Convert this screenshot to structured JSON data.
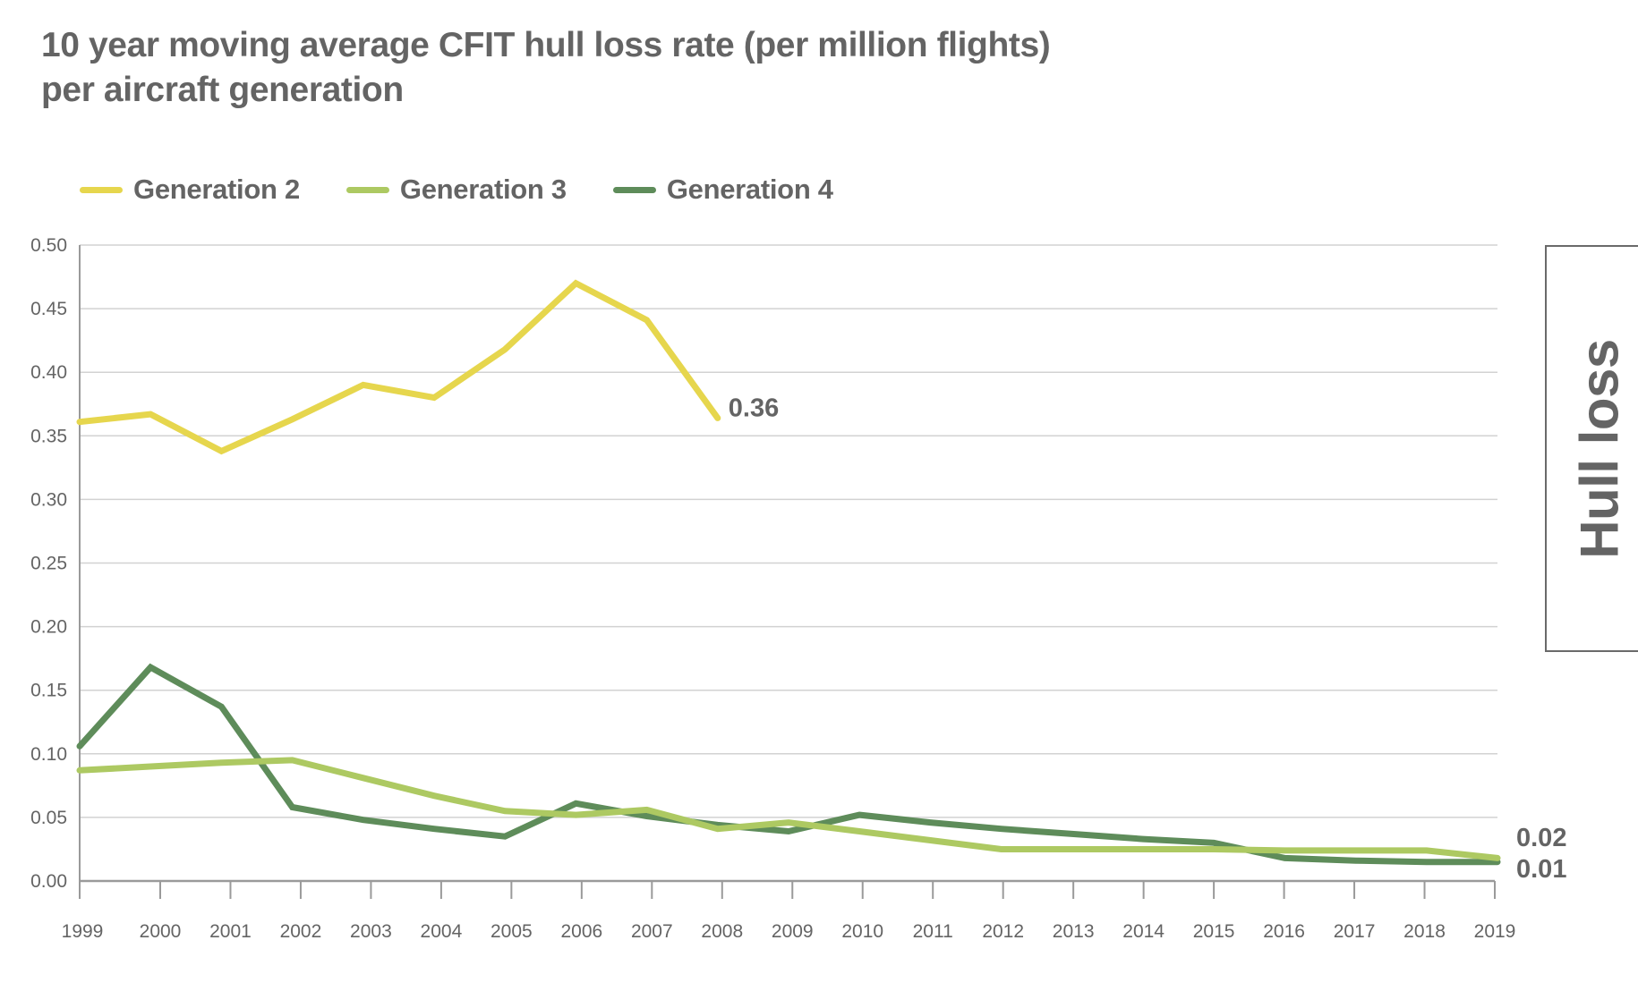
{
  "chart_data": {
    "type": "line",
    "title": "10 year moving average CFIT hull loss rate (per million flights) per aircraft generation",
    "title_lines": [
      "10 year moving average CFIT hull loss rate (per million flights)",
      "per aircraft generation"
    ],
    "xlabel": "",
    "ylabel": "",
    "x": [
      "1999",
      "2000",
      "2001",
      "2002",
      "2003",
      "2004",
      "2005",
      "2006",
      "2007",
      "2008",
      "2009",
      "2010",
      "2011",
      "2012",
      "2013",
      "2014",
      "2015",
      "2016",
      "2017",
      "2018",
      "2019"
    ],
    "ylim": [
      0,
      0.5
    ],
    "yticks": [
      "0.00",
      "0.05",
      "0.10",
      "0.15",
      "0.20",
      "0.25",
      "0.30",
      "0.35",
      "0.40",
      "0.45",
      "0.50"
    ],
    "grid": true,
    "legend_position": "top-left",
    "series": [
      {
        "name": "Generation 2",
        "color": "#e6d64d",
        "values": [
          0.361,
          0.367,
          0.338,
          0.363,
          0.39,
          0.38,
          0.418,
          0.47,
          0.441,
          0.364,
          null,
          null,
          null,
          null,
          null,
          null,
          null,
          null,
          null,
          null,
          null
        ],
        "end_label": "0.36"
      },
      {
        "name": "Generation 3",
        "color": "#adc962",
        "values": [
          0.087,
          0.09,
          0.093,
          0.095,
          0.081,
          0.067,
          0.055,
          0.052,
          0.056,
          0.041,
          0.046,
          0.039,
          0.032,
          0.025,
          0.025,
          0.025,
          0.025,
          0.024,
          0.024,
          0.024,
          0.018
        ],
        "end_label": "0.02"
      },
      {
        "name": "Generation 4",
        "color": "#5e8c5a",
        "values": [
          0.106,
          0.168,
          0.137,
          0.058,
          0.048,
          0.041,
          0.035,
          0.061,
          0.051,
          0.044,
          0.039,
          0.052,
          0.046,
          0.041,
          0.037,
          0.033,
          0.03,
          0.018,
          0.016,
          0.015,
          0.015
        ],
        "end_label": "0.01"
      }
    ],
    "side_label": "Hull loss"
  }
}
